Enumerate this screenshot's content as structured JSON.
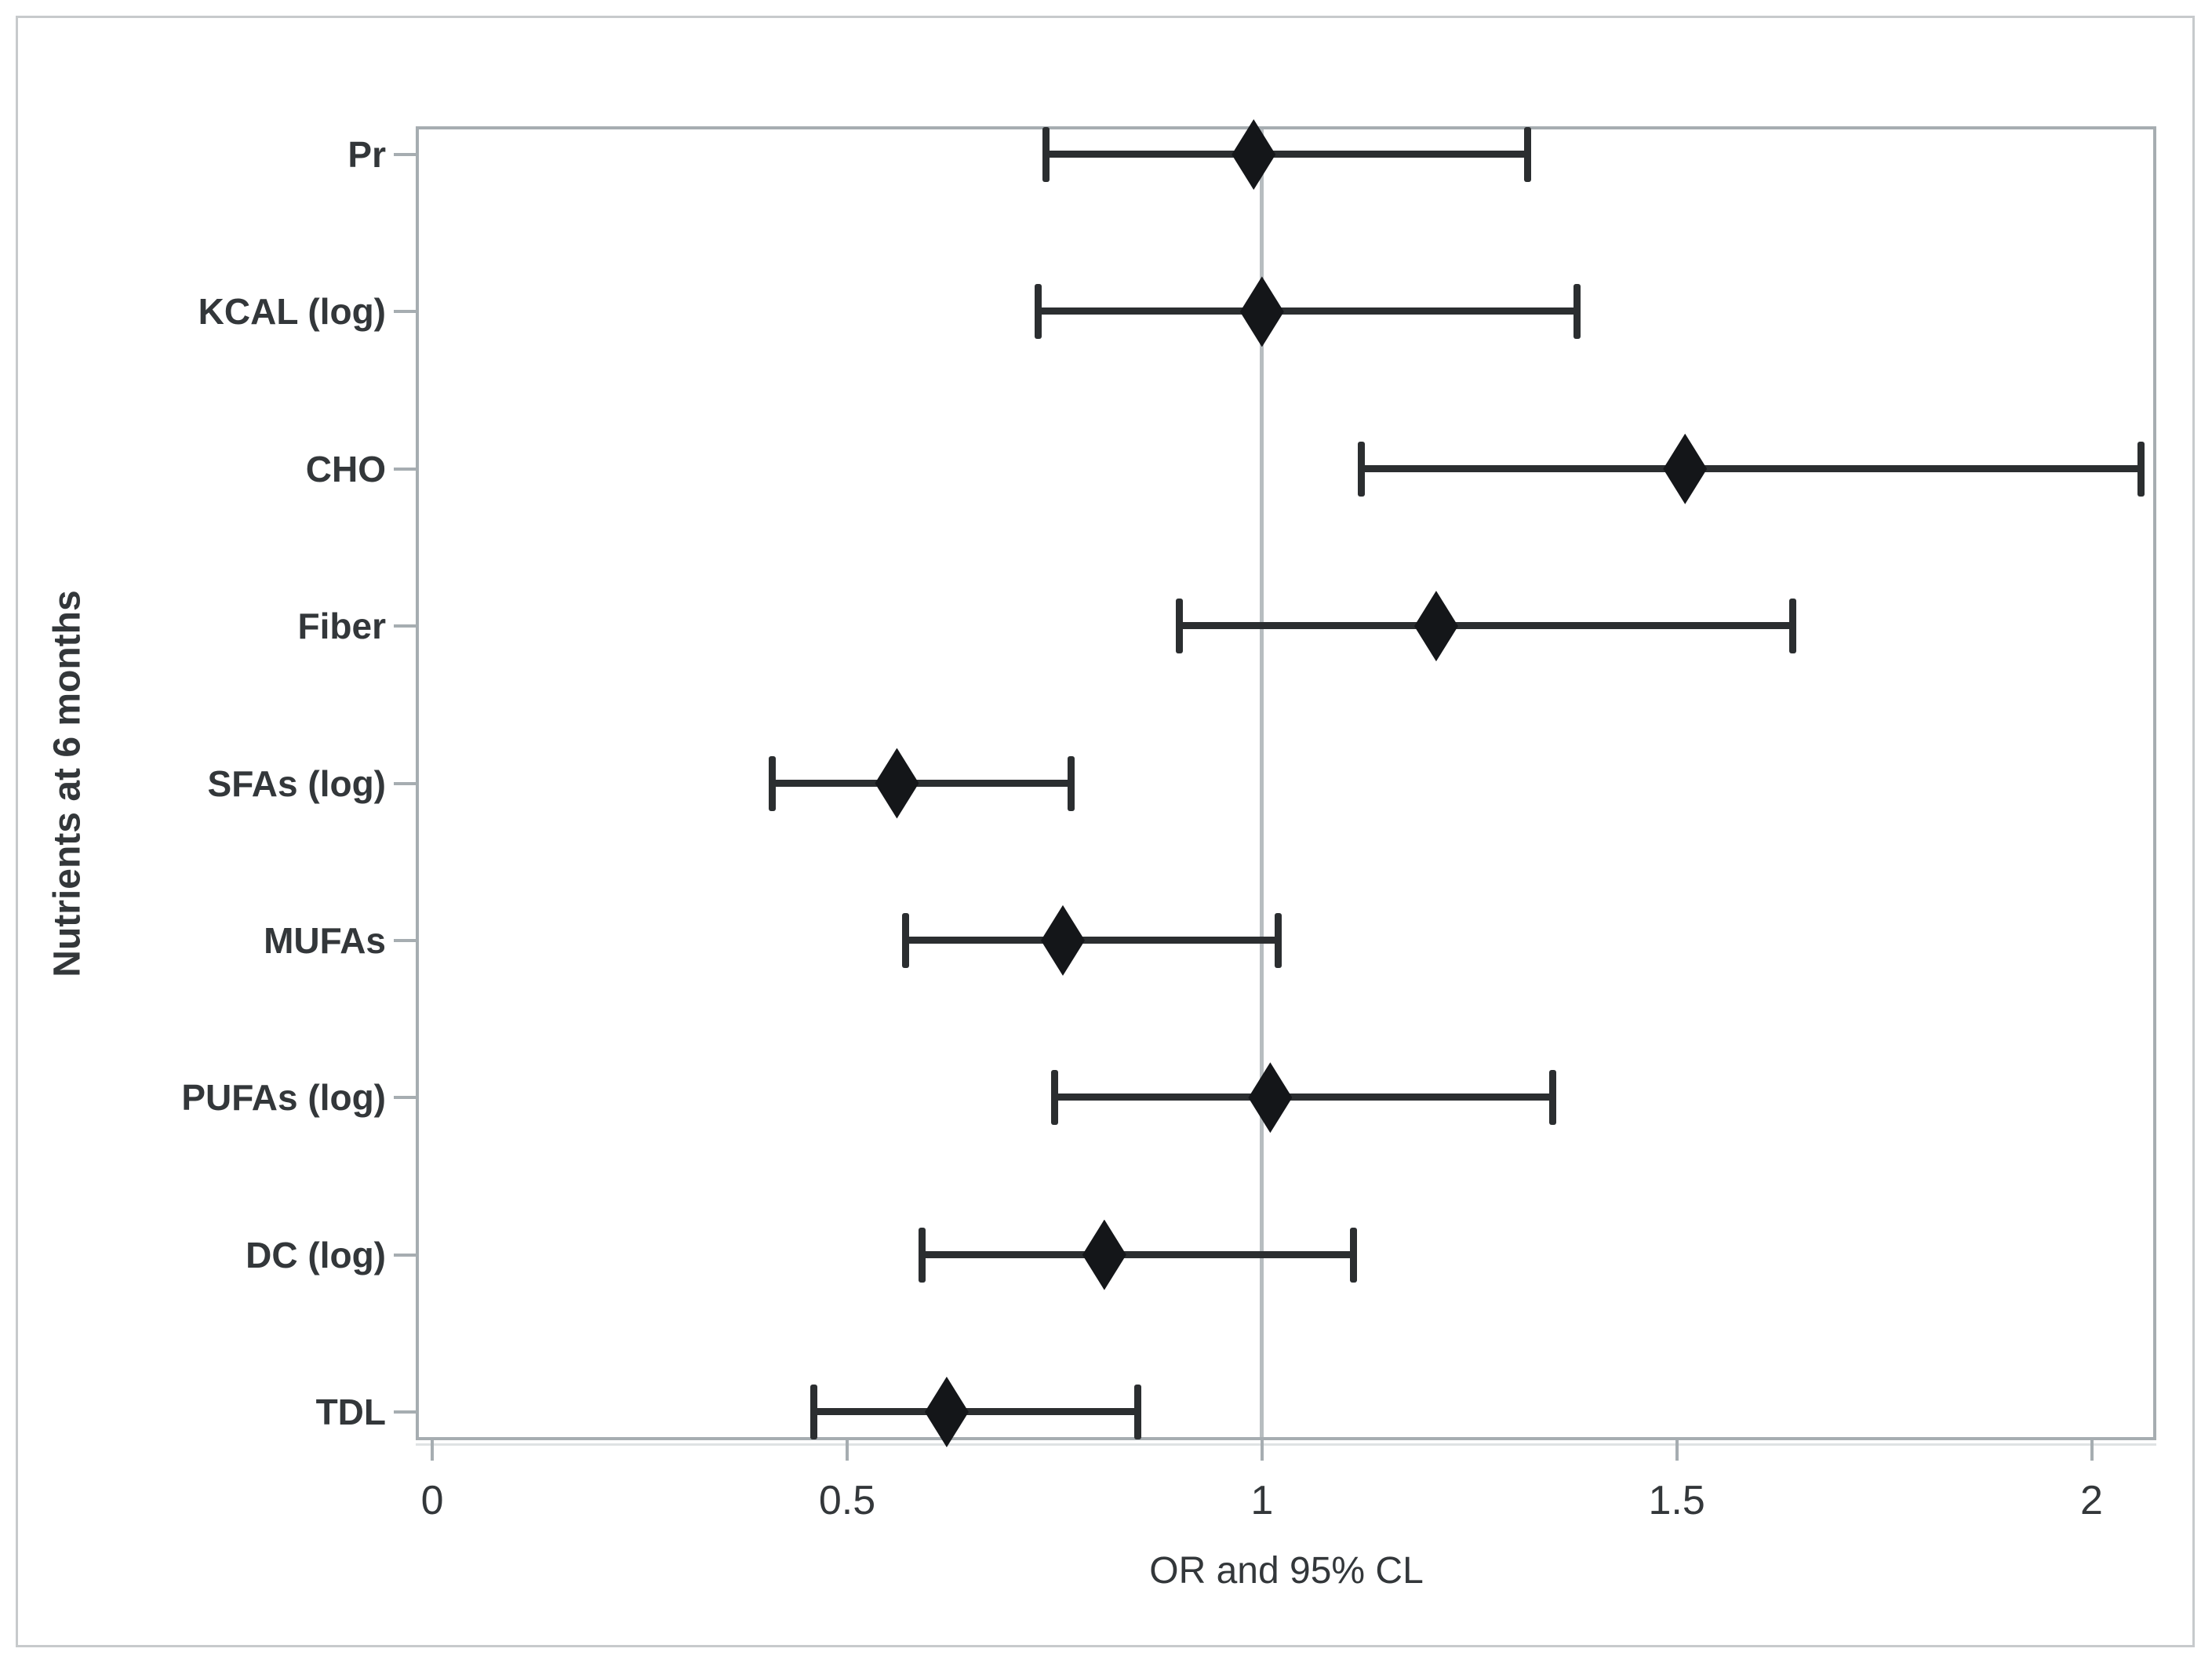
{
  "figure": {
    "x_axis_title": "OR and 95% CL",
    "y_axis_title": "Nutrients at 6 months"
  },
  "chart_data": {
    "type": "scatter",
    "subtype": "forest-plot",
    "title": "",
    "xlabel": "OR and 95% CL",
    "ylabel": "Nutrients at 6 months",
    "categories": [
      "Pr",
      "KCAL (log)",
      "CHO",
      "Fiber",
      "SFAs (log)",
      "MUFAs",
      "PUFAs (log)",
      "DC (log)",
      "TDL"
    ],
    "series": [
      {
        "name": "OR",
        "values": [
          0.99,
          1.0,
          1.51,
          1.21,
          0.56,
          0.76,
          1.01,
          0.81,
          0.62
        ]
      },
      {
        "name": "CI_lower",
        "values": [
          0.74,
          0.73,
          1.12,
          0.9,
          0.41,
          0.57,
          0.75,
          0.59,
          0.46
        ]
      },
      {
        "name": "CI_upper",
        "values": [
          1.32,
          1.38,
          2.06,
          1.64,
          0.77,
          1.02,
          1.35,
          1.11,
          0.85
        ]
      }
    ],
    "xlim": [
      -0.02,
      2.078
    ],
    "xticks": [
      0,
      0.5,
      1,
      1.5,
      2
    ],
    "xtick_labels": [
      "0",
      "0.5",
      "1",
      "1.5",
      "2"
    ],
    "reference_line_x": 1,
    "grid": false,
    "legend": "none",
    "marker": "diamond"
  },
  "colors": {
    "error_bar": "#2b2e30",
    "marker": "#141619",
    "frame": "#a6adb1",
    "reference_line": "#b7bdc0",
    "text": "#33373a",
    "outer_border": "#c7cacc",
    "background": "#ffffff"
  }
}
